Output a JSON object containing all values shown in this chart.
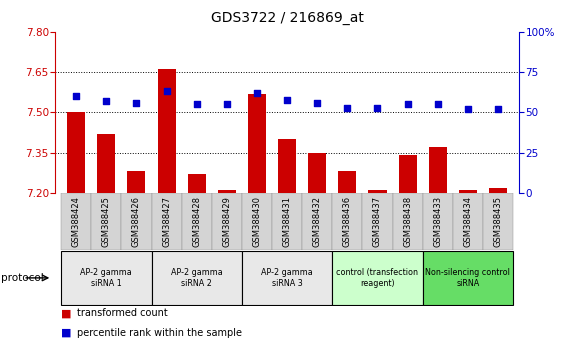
{
  "title": "GDS3722 / 216869_at",
  "samples": [
    "GSM388424",
    "GSM388425",
    "GSM388426",
    "GSM388427",
    "GSM388428",
    "GSM388429",
    "GSM388430",
    "GSM388431",
    "GSM388432",
    "GSM388436",
    "GSM388437",
    "GSM388438",
    "GSM388433",
    "GSM388434",
    "GSM388435"
  ],
  "transformed_count": [
    7.5,
    7.42,
    7.28,
    7.66,
    7.27,
    7.21,
    7.57,
    7.4,
    7.35,
    7.28,
    7.21,
    7.34,
    7.37,
    7.21,
    7.22
  ],
  "percentile_rank": [
    60,
    57,
    56,
    63,
    55,
    55,
    62,
    58,
    56,
    53,
    53,
    55,
    55,
    52,
    52
  ],
  "ylim_left": [
    7.2,
    7.8
  ],
  "ylim_right": [
    0,
    100
  ],
  "yticks_left": [
    7.2,
    7.35,
    7.5,
    7.65,
    7.8
  ],
  "yticks_right": [
    0,
    25,
    50,
    75,
    100
  ],
  "bar_color": "#cc0000",
  "dot_color": "#0000cc",
  "protocol_groups": [
    {
      "label": "AP-2 gamma\nsiRNA 1",
      "indices": [
        0,
        1,
        2
      ],
      "fill": "#e8e8e8"
    },
    {
      "label": "AP-2 gamma\nsiRNA 2",
      "indices": [
        3,
        4,
        5
      ],
      "fill": "#e8e8e8"
    },
    {
      "label": "AP-2 gamma\nsiRNA 3",
      "indices": [
        6,
        7,
        8
      ],
      "fill": "#e8e8e8"
    },
    {
      "label": "control (transfection\nreagent)",
      "indices": [
        9,
        10,
        11
      ],
      "fill": "#ccffcc"
    },
    {
      "label": "Non-silencing control\nsiRNA",
      "indices": [
        12,
        13,
        14
      ],
      "fill": "#66dd66"
    }
  ],
  "legend_transformed": "transformed count",
  "legend_percentile": "percentile rank within the sample",
  "protocol_label": "protocol",
  "bar_width": 0.6,
  "dot_size": 22,
  "tick_fontsize": 7.5,
  "sample_fontsize": 6.0,
  "title_fontsize": 10
}
